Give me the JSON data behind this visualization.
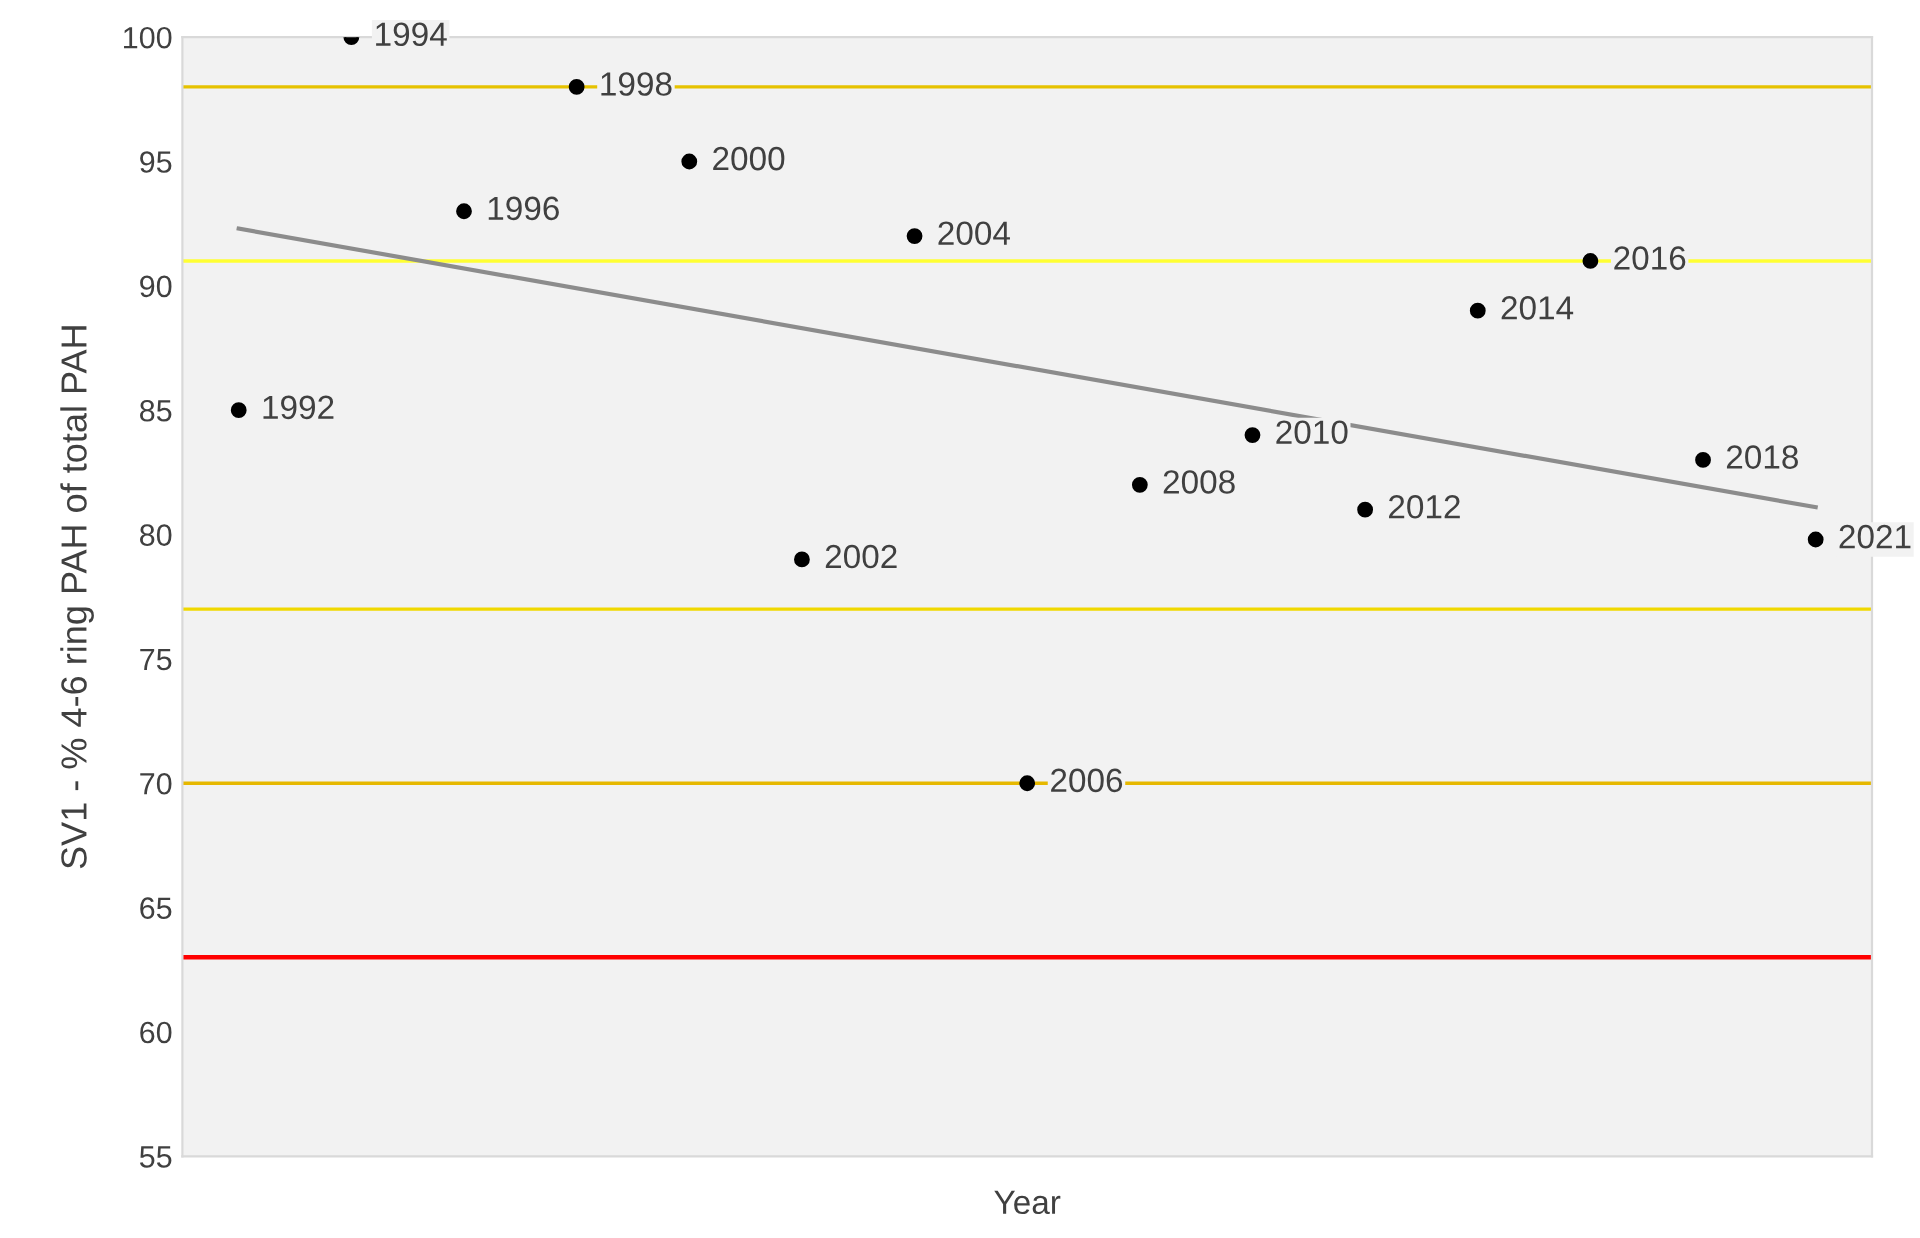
{
  "chart_data": {
    "type": "scatter",
    "xlabel": "Year",
    "ylabel": "SV1 - % 4-6 ring PAH of total PAH",
    "categories": [
      null,
      null,
      null,
      null,
      null,
      null,
      null,
      null,
      null,
      null,
      null,
      null,
      null,
      null,
      null
    ],
    "series": [
      {
        "type": "scatter",
        "color": "#000000",
        "marker": "circle",
        "values": [
          85,
          100,
          93,
          98,
          95,
          79,
          92,
          70,
          82,
          84,
          81,
          89,
          91,
          83,
          79.8
        ]
      },
      {
        "type": "line",
        "color": "#8c8c8c",
        "values": [
          92.3,
          null,
          null,
          null,
          null,
          null,
          null,
          null,
          null,
          null,
          null,
          null,
          null,
          null,
          81.1
        ]
      }
    ],
    "ref_lines": [
      {
        "axis": "y",
        "value": 98,
        "color": "#e6c200"
      },
      {
        "axis": "y",
        "value": 91,
        "color": "#ffff33"
      },
      {
        "axis": "y",
        "value": 77,
        "color": "#f0d800"
      },
      {
        "axis": "y",
        "value": 70,
        "color": "#e6b800"
      },
      {
        "axis": "y",
        "value": 63,
        "color": "#ff0000"
      }
    ],
    "annotations": [
      {
        "text": "1992",
        "y": 85
      },
      {
        "text": "1994",
        "y": 100
      },
      {
        "text": "1996",
        "y": 93
      },
      {
        "text": "1998",
        "y": 98
      },
      {
        "text": "2000",
        "y": 95
      },
      {
        "text": "2002",
        "y": 79
      },
      {
        "text": "2004",
        "y": 92
      },
      {
        "text": "2006",
        "y": 70
      },
      {
        "text": "2008",
        "y": 82
      },
      {
        "text": "2010",
        "y": 84
      },
      {
        "text": "2012",
        "y": 81
      },
      {
        "text": "2014",
        "y": 89
      },
      {
        "text": "2016",
        "y": 91
      },
      {
        "text": "2018",
        "y": 83
      },
      {
        "text": "2021",
        "y": 79.8
      }
    ],
    "ylim": [
      55,
      100
    ],
    "yticks": [
      55,
      60,
      65,
      70,
      75,
      80,
      85,
      90,
      95,
      100
    ],
    "tick_labels": "y",
    "grid": false,
    "legend": false
  }
}
